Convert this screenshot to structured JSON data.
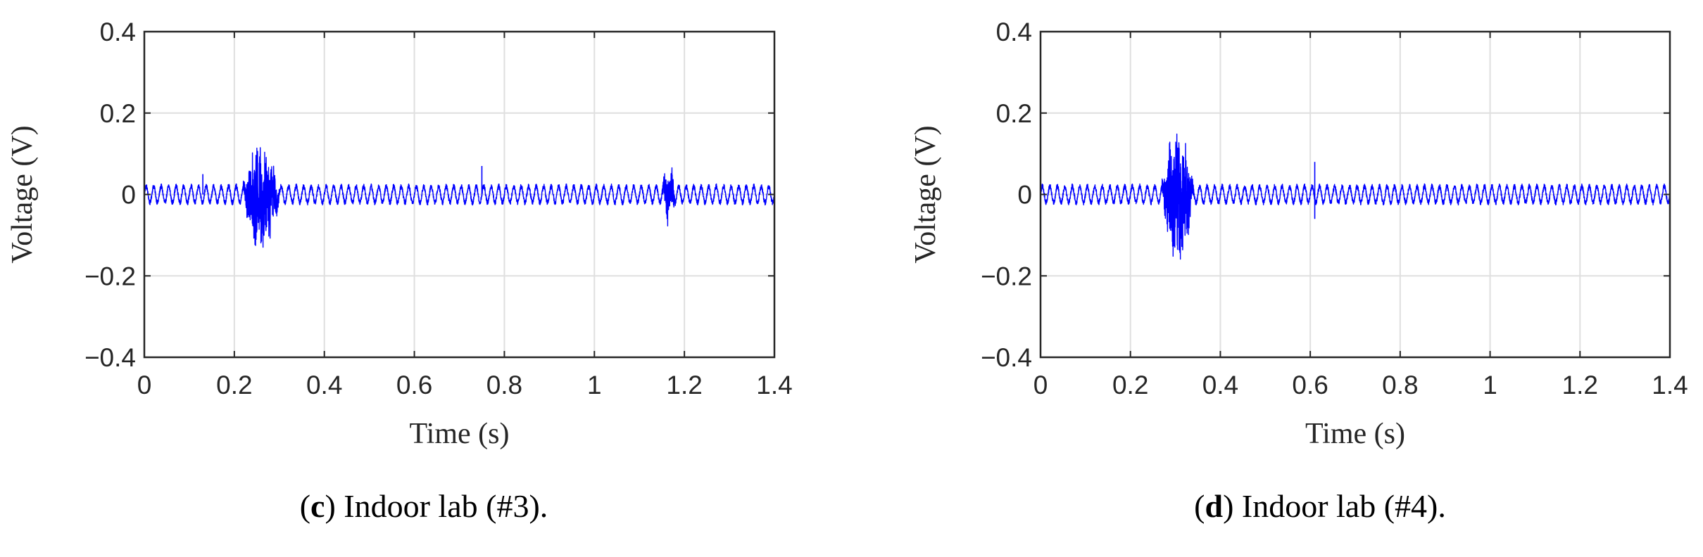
{
  "chart_data": [
    {
      "type": "line",
      "caption": {
        "letter": "c",
        "close": ")",
        "text": " Indoor lab (#3)."
      },
      "xlabel": "Time (s)",
      "ylabel": "Voltage (V)",
      "xlim": [
        0,
        1.4
      ],
      "ylim": [
        -0.4,
        0.4
      ],
      "xticks": [
        0,
        0.2,
        0.4,
        0.6,
        0.8,
        1,
        1.2,
        1.4
      ],
      "xtick_labels": [
        "0",
        "0.2",
        "0.4",
        "0.6",
        "0.8",
        "1",
        "1.2",
        "1.4"
      ],
      "yticks": [
        -0.4,
        -0.2,
        0,
        0.2,
        0.4
      ],
      "ytick_labels": [
        "−0.4",
        "−0.2",
        "0",
        "0.2",
        "0.4"
      ],
      "grid": true,
      "color": "#0000ff",
      "series": [
        {
          "baseline_oscillation": {
            "amplitude": 0.02,
            "cycles_per_second": 60
          },
          "bursts": [
            {
              "t_start": 0.22,
              "t_end": 0.3,
              "amplitude": 0.12
            },
            {
              "t_start": 1.15,
              "t_end": 1.18,
              "amplitude": 0.06
            }
          ],
          "spikes": [
            {
              "t": 0.75,
              "value": 0.07
            },
            {
              "t": 0.13,
              "value": 0.05
            }
          ]
        }
      ]
    },
    {
      "type": "line",
      "caption": {
        "letter": "d",
        "close": ")",
        "text": " Indoor lab (#4)."
      },
      "xlabel": "Time (s)",
      "ylabel": "Voltage (V)",
      "xlim": [
        0,
        1.4
      ],
      "ylim": [
        -0.4,
        0.4
      ],
      "xticks": [
        0,
        0.2,
        0.4,
        0.6,
        0.8,
        1,
        1.2,
        1.4
      ],
      "xtick_labels": [
        "0",
        "0.2",
        "0.4",
        "0.6",
        "0.8",
        "1",
        "1.2",
        "1.4"
      ],
      "yticks": [
        -0.4,
        -0.2,
        0,
        0.2,
        0.4
      ],
      "ytick_labels": [
        "−0.4",
        "−0.2",
        "0",
        "0.2",
        "0.4"
      ],
      "grid": true,
      "color": "#0000ff",
      "series": [
        {
          "baseline_oscillation": {
            "amplitude": 0.02,
            "cycles_per_second": 60
          },
          "bursts": [
            {
              "t_start": 0.27,
              "t_end": 0.34,
              "amplitude": 0.15
            }
          ],
          "spikes": [
            {
              "t": 0.61,
              "value": 0.08
            },
            {
              "t": 0.61,
              "value": -0.06
            }
          ]
        }
      ]
    }
  ]
}
